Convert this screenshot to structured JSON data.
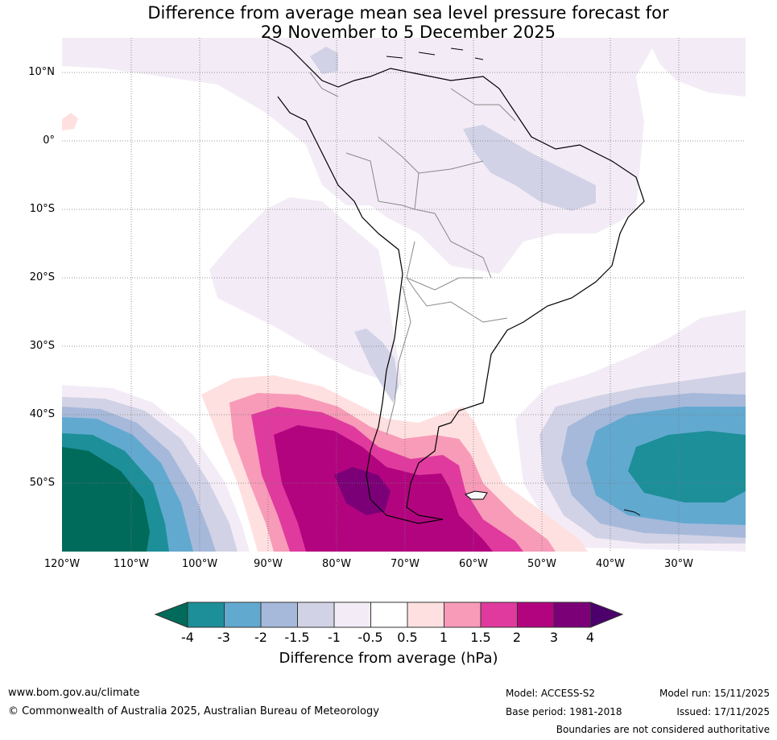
{
  "title": {
    "line1": "Difference from average mean sea level pressure forecast for",
    "line2": "29 November to 5 December 2025"
  },
  "map": {
    "region": "South America",
    "latitude_labels": [
      "10°N",
      "0°",
      "10°S",
      "20°S",
      "30°S",
      "40°S",
      "50°S"
    ],
    "longitude_labels": [
      "120°W",
      "110°W",
      "100°W",
      "90°W",
      "80°W",
      "70°W",
      "60°W",
      "50°W",
      "40°W",
      "30°W"
    ]
  },
  "colorbar": {
    "ticks": [
      "-4",
      "-3",
      "-2",
      "-1.5",
      "-1",
      "-0.5",
      "0.5",
      "1",
      "1.5",
      "2",
      "3",
      "4"
    ],
    "colors": {
      "below_-4": "#006b5a",
      "-4_-3": "#1d8f99",
      "-3_-2": "#62a9d0",
      "-2_-1.5": "#a6b9da",
      "-1.5_-1": "#d2d2e6",
      "-1_-0.5": "#f3ecf6",
      "-0.5_0.5": "#ffffff",
      "0.5_1": "#ffe0e0",
      "1_1.5": "#f79bb8",
      "1.5_2": "#e03a9e",
      "2_3": "#b3047f",
      "3_4": "#7b0078",
      "above_4": "#4c006b"
    },
    "label": "Difference from average (hPa)"
  },
  "footer": {
    "website": "www.bom.gov.au/climate",
    "copyright": "© Commonwealth of Australia 2025, Australian Bureau of Meteorology",
    "model": "Model: ACCESS-S2",
    "base_period": "Base period: 1981-2018",
    "model_run": "Model run: 15/11/2025",
    "issued": "Issued: 17/11/2025",
    "disclaimer": "Boundaries are not considered authoritative"
  }
}
